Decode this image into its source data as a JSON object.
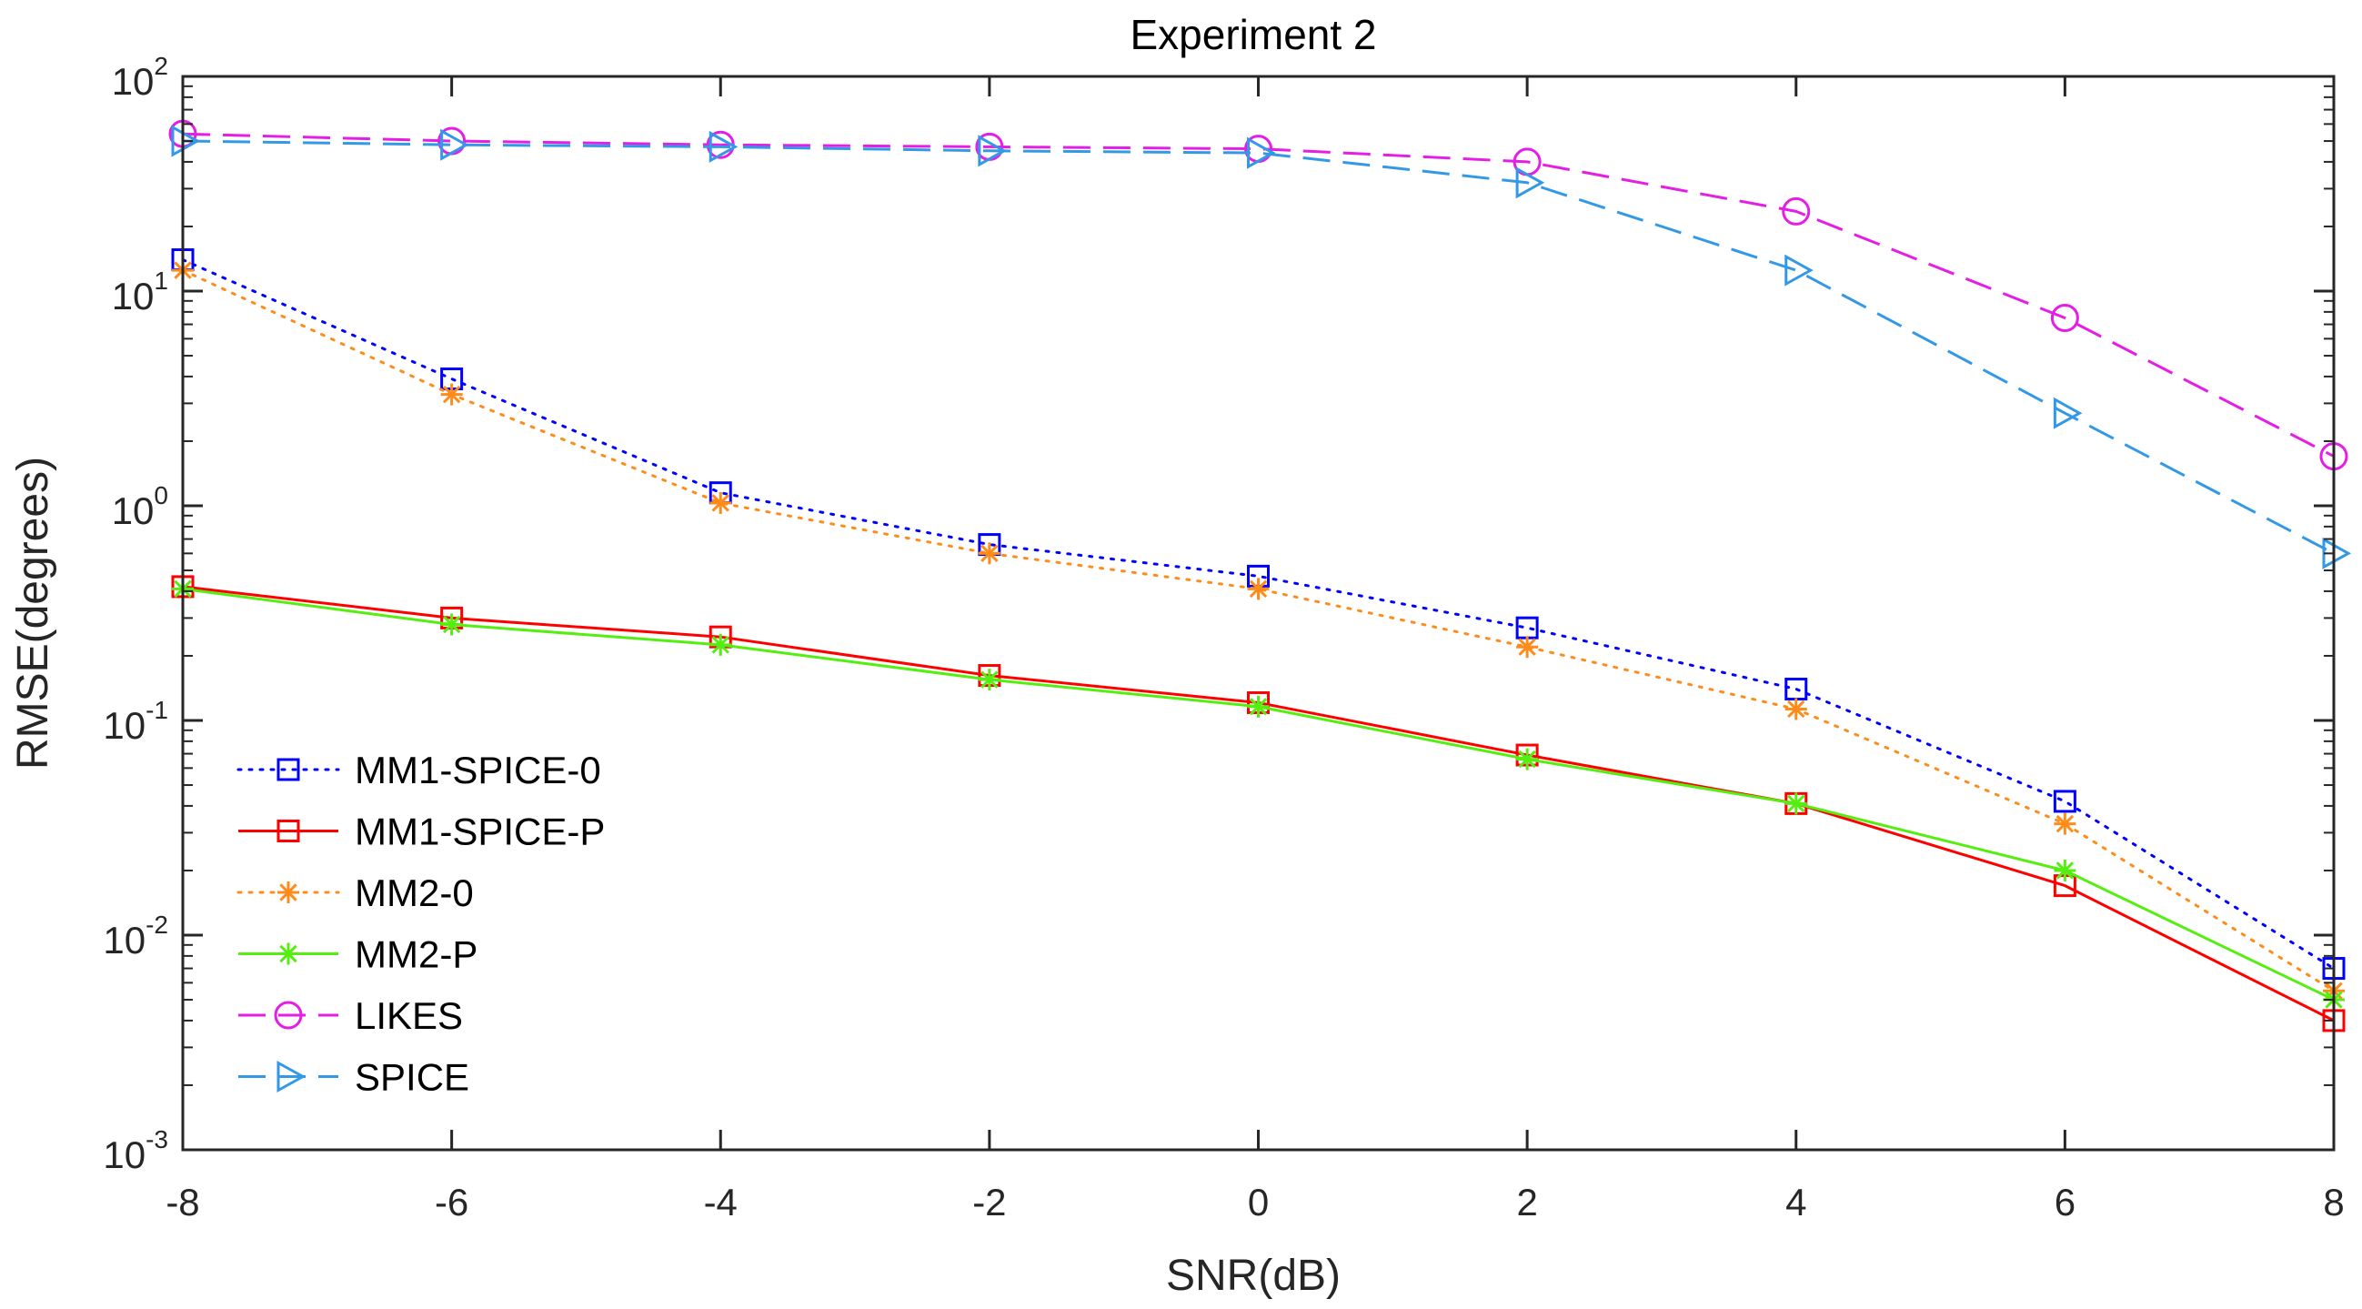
{
  "chart_data": {
    "type": "line",
    "title": "Experiment 2",
    "xlabel": "SNR(dB)",
    "ylabel": "RMSE(degrees)",
    "yscale": "log",
    "xlim": [
      -8,
      8
    ],
    "ylim": [
      0.001,
      100
    ],
    "x": [
      -8,
      -6,
      -4,
      -2,
      0,
      2,
      4,
      6,
      8
    ],
    "x_tick_labels": [
      "-8",
      "-6",
      "-4",
      "-2",
      "0",
      "2",
      "4",
      "6",
      "8"
    ],
    "y_ticks": [
      {
        "base": "10",
        "exp": "-3",
        "value": 0.001
      },
      {
        "base": "10",
        "exp": "-2",
        "value": 0.01
      },
      {
        "base": "10",
        "exp": "-1",
        "value": 0.1
      },
      {
        "base": "10",
        "exp": "0",
        "value": 1
      },
      {
        "base": "10",
        "exp": "1",
        "value": 10
      },
      {
        "base": "10",
        "exp": "2",
        "value": 100
      }
    ],
    "grid": false,
    "legend_position": "bottom-left",
    "series": [
      {
        "name": "MM1-SPICE-0",
        "color": "#0000ff",
        "line_style": "dotted",
        "marker": "square",
        "values": [
          14,
          3.9,
          1.15,
          0.66,
          0.47,
          0.27,
          0.14,
          0.042,
          0.007
        ]
      },
      {
        "name": "MM1-SPICE-P",
        "color": "#ff0000",
        "line_style": "solid",
        "marker": "square",
        "values": [
          0.42,
          0.3,
          0.245,
          0.162,
          0.121,
          0.069,
          0.041,
          0.017,
          0.004
        ]
      },
      {
        "name": "MM2-0",
        "color": "#ff8c1a",
        "line_style": "dotted",
        "marker": "asterisk",
        "values": [
          12.5,
          3.3,
          1.03,
          0.6,
          0.41,
          0.22,
          0.113,
          0.033,
          0.0055
        ]
      },
      {
        "name": "MM2-P",
        "color": "#55ee11",
        "line_style": "solid",
        "marker": "asterisk",
        "values": [
          0.41,
          0.28,
          0.225,
          0.155,
          0.116,
          0.066,
          0.041,
          0.02,
          0.005
        ]
      },
      {
        "name": "LIKES",
        "color": "#e51ee5",
        "line_style": "dashed",
        "marker": "circle",
        "values": [
          54,
          50,
          48,
          47,
          46,
          40,
          23.5,
          7.5,
          1.7
        ]
      },
      {
        "name": "SPICE",
        "color": "#3399e6",
        "line_style": "dashed",
        "marker": "triangle-right",
        "values": [
          50,
          48,
          47,
          45,
          44,
          32,
          12.5,
          2.7,
          0.6
        ]
      }
    ]
  }
}
